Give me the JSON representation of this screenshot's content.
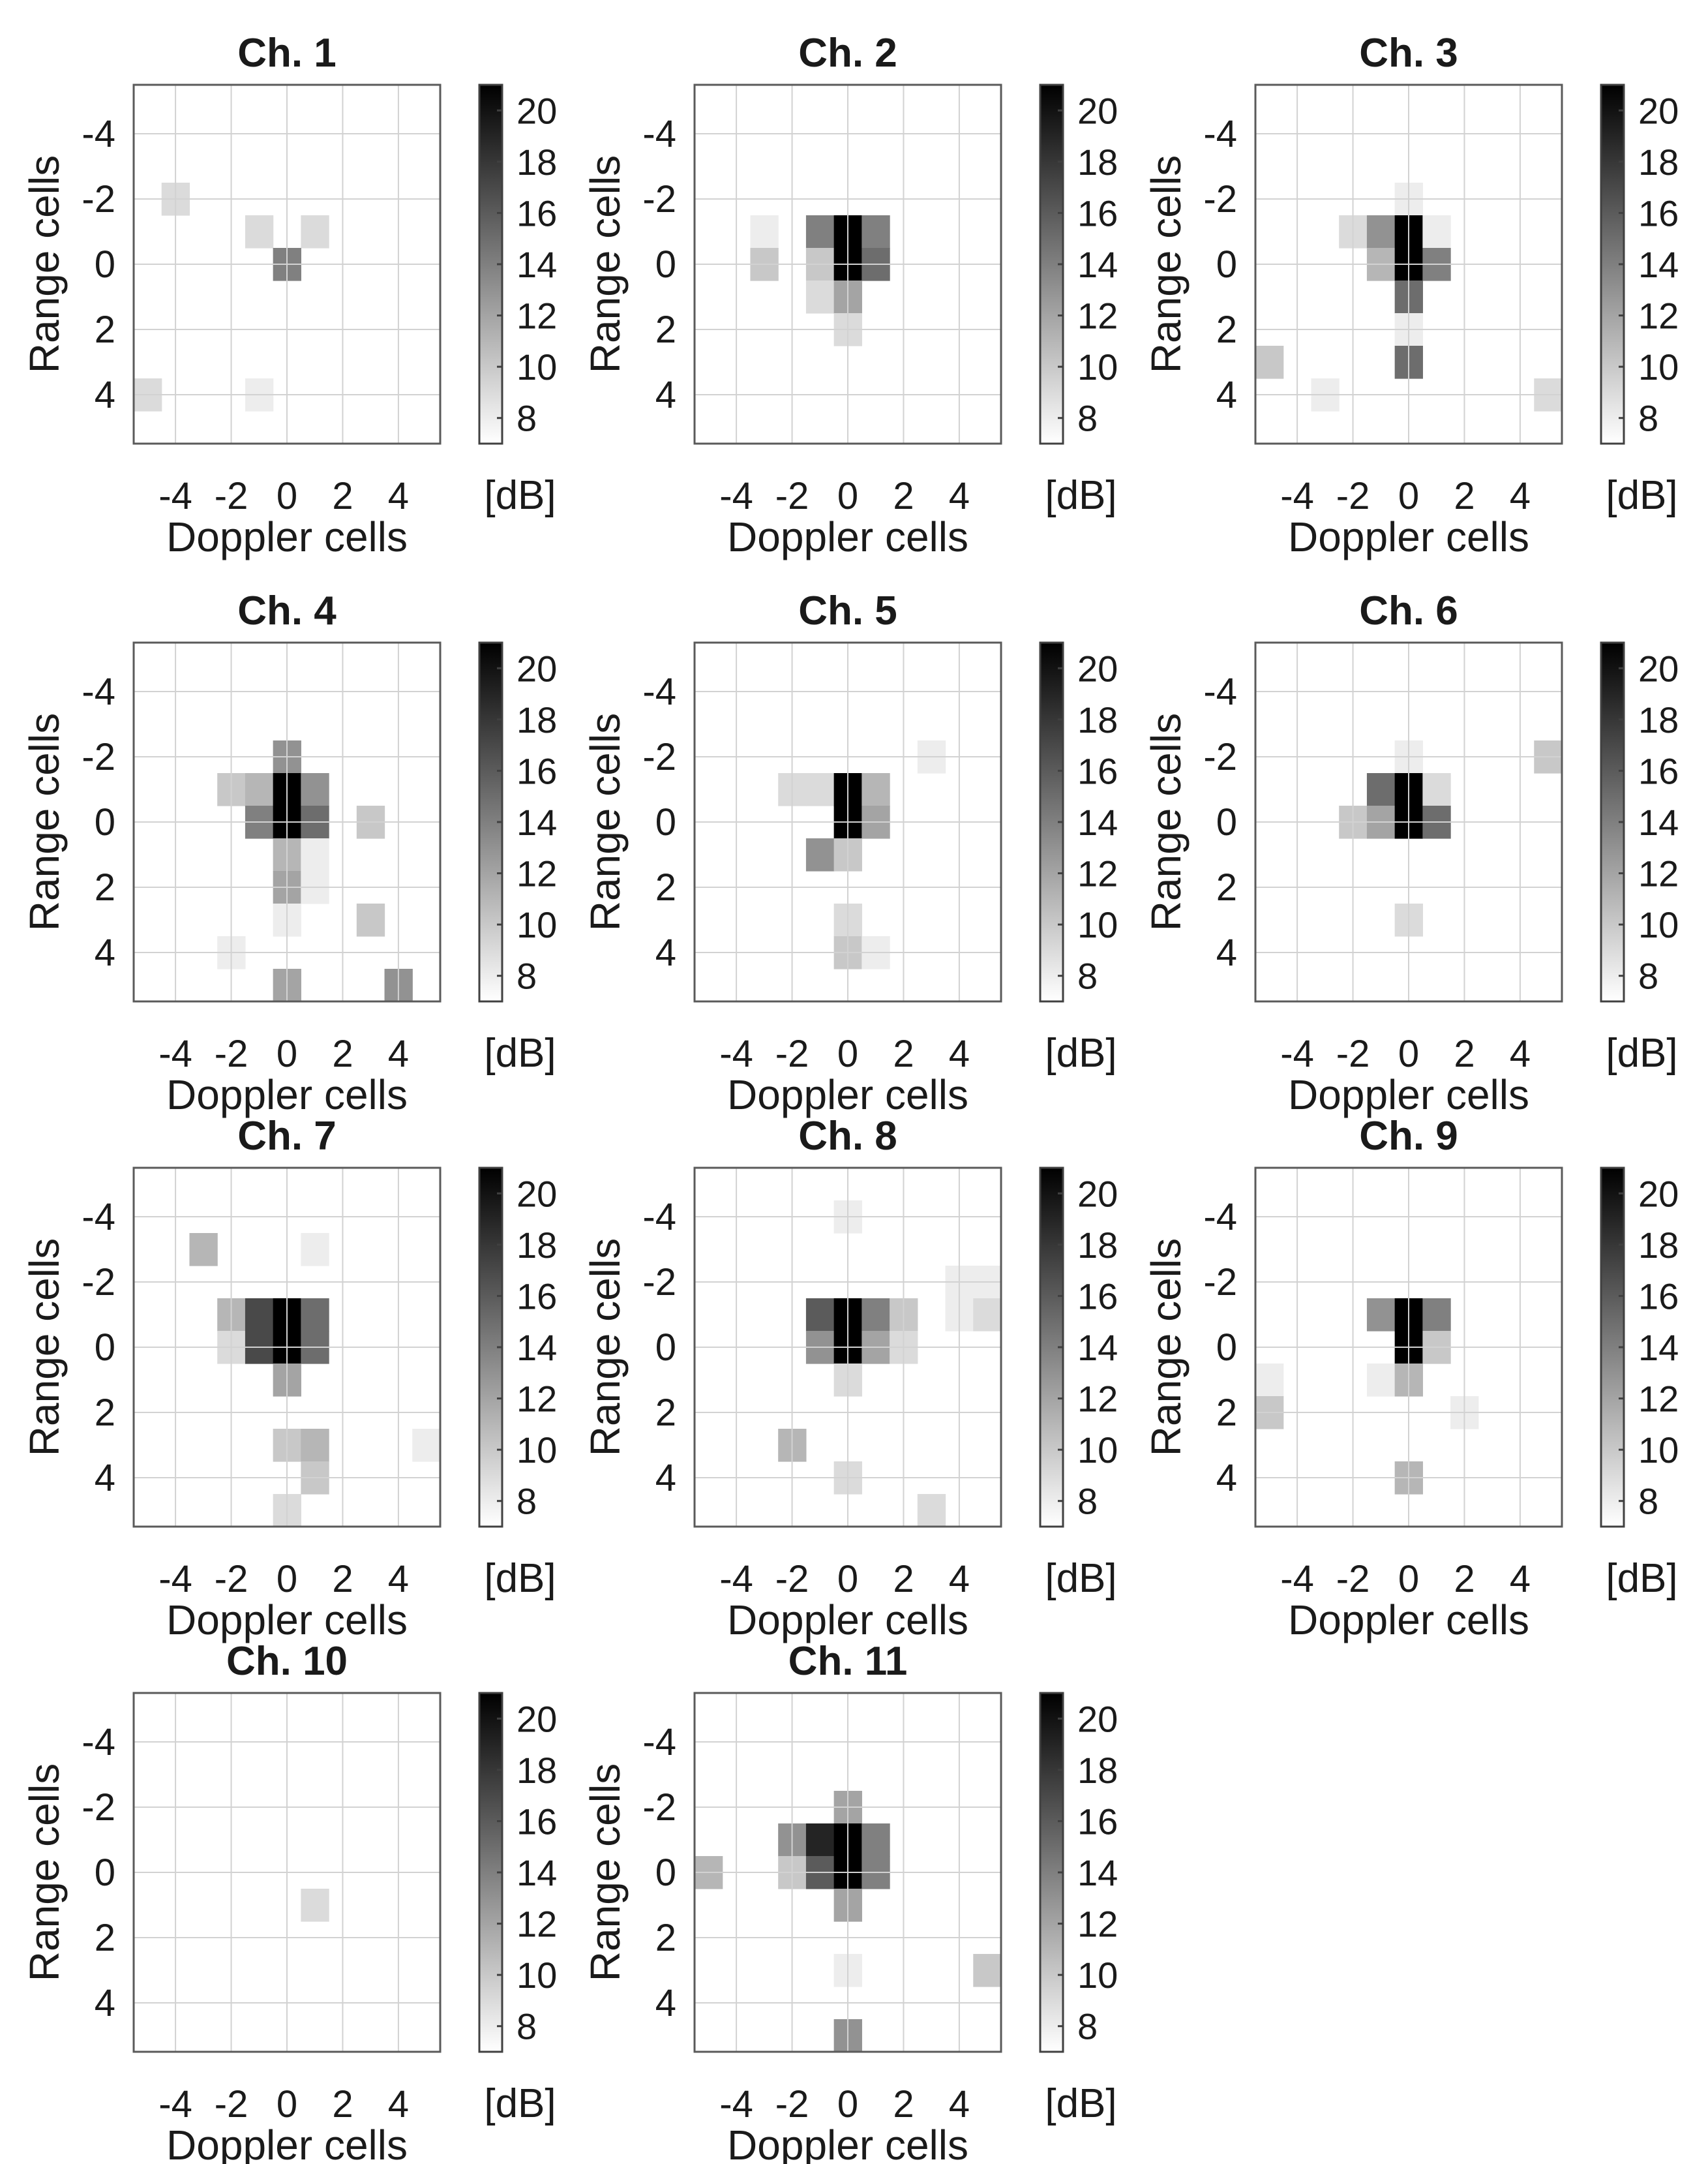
{
  "chart_data": {
    "type": "heatmap",
    "xlabel": "Doppler cells",
    "ylabel": "Range cells",
    "x_ticks": [
      "-4",
      "-2",
      "0",
      "2",
      "4"
    ],
    "y_ticks": [
      "-4",
      "-2",
      "0",
      "2",
      "4"
    ],
    "xlim": [
      -5.5,
      5.5
    ],
    "ylim": [
      -5.5,
      5.5
    ],
    "y_direction": "reversed",
    "grid": true,
    "colormap": "gray-reversed",
    "colorbar": {
      "label": "[dB]",
      "range": [
        7,
        21
      ],
      "ticks": [
        "8",
        "10",
        "12",
        "14",
        "16",
        "18",
        "20"
      ]
    },
    "panels": [
      {
        "title": "Ch. 1",
        "cells": [
          [
            -4,
            -2,
            9
          ],
          [
            -1,
            -1,
            9
          ],
          [
            1,
            -1,
            9
          ],
          [
            0,
            0,
            14
          ],
          [
            -5,
            4,
            9
          ],
          [
            -1,
            4,
            8
          ]
        ]
      },
      {
        "title": "Ch. 2",
        "cells": [
          [
            -3,
            -1,
            8
          ],
          [
            -1,
            -1,
            14
          ],
          [
            0,
            -1,
            21
          ],
          [
            1,
            -1,
            14
          ],
          [
            -3,
            0,
            10
          ],
          [
            -1,
            0,
            10
          ],
          [
            0,
            0,
            21
          ],
          [
            1,
            0,
            15
          ],
          [
            -1,
            1,
            9
          ],
          [
            0,
            1,
            12
          ],
          [
            0,
            2,
            9
          ]
        ]
      },
      {
        "title": "Ch. 3",
        "cells": [
          [
            0,
            -2,
            8
          ],
          [
            -2,
            -1,
            9
          ],
          [
            -1,
            -1,
            13
          ],
          [
            0,
            -1,
            21
          ],
          [
            1,
            -1,
            8
          ],
          [
            -1,
            0,
            11
          ],
          [
            0,
            0,
            21
          ],
          [
            1,
            0,
            14
          ],
          [
            0,
            1,
            15
          ],
          [
            0,
            2,
            8
          ],
          [
            -5,
            3,
            10
          ],
          [
            0,
            3,
            15
          ],
          [
            -3,
            4,
            8
          ],
          [
            5,
            4,
            9
          ]
        ]
      },
      {
        "title": "Ch. 4",
        "cells": [
          [
            0,
            -2,
            13
          ],
          [
            -2,
            -1,
            10
          ],
          [
            -1,
            -1,
            11
          ],
          [
            0,
            -1,
            21
          ],
          [
            1,
            -1,
            13
          ],
          [
            -1,
            0,
            14
          ],
          [
            0,
            0,
            21
          ],
          [
            1,
            0,
            15
          ],
          [
            3,
            0,
            10
          ],
          [
            0,
            1,
            11
          ],
          [
            1,
            1,
            8
          ],
          [
            0,
            2,
            12
          ],
          [
            1,
            2,
            8
          ],
          [
            0,
            3,
            8
          ],
          [
            3,
            3,
            10
          ],
          [
            -2,
            4,
            8
          ],
          [
            0,
            5,
            12
          ],
          [
            4,
            5,
            13
          ]
        ]
      },
      {
        "title": "Ch. 5",
        "cells": [
          [
            3,
            -2,
            8
          ],
          [
            -2,
            -1,
            9
          ],
          [
            -1,
            -1,
            9
          ],
          [
            0,
            -1,
            21
          ],
          [
            1,
            -1,
            11
          ],
          [
            0,
            0,
            21
          ],
          [
            1,
            0,
            12
          ],
          [
            -1,
            1,
            13
          ],
          [
            0,
            1,
            10
          ],
          [
            0,
            3,
            9
          ],
          [
            0,
            4,
            10
          ],
          [
            1,
            4,
            8
          ]
        ]
      },
      {
        "title": "Ch. 6",
        "cells": [
          [
            0,
            -2,
            8
          ],
          [
            5,
            -2,
            10
          ],
          [
            -1,
            -1,
            15
          ],
          [
            0,
            -1,
            21
          ],
          [
            1,
            -1,
            9
          ],
          [
            -2,
            0,
            10
          ],
          [
            -1,
            0,
            12
          ],
          [
            0,
            0,
            21
          ],
          [
            1,
            0,
            15
          ],
          [
            0,
            3,
            9
          ]
        ]
      },
      {
        "title": "Ch. 7",
        "cells": [
          [
            -3,
            -3,
            11
          ],
          [
            1,
            -3,
            8
          ],
          [
            -2,
            -1,
            11
          ],
          [
            -1,
            -1,
            17
          ],
          [
            0,
            -1,
            21
          ],
          [
            1,
            -1,
            15
          ],
          [
            -2,
            0,
            9
          ],
          [
            -1,
            0,
            17
          ],
          [
            0,
            0,
            21
          ],
          [
            1,
            0,
            15
          ],
          [
            0,
            1,
            12
          ],
          [
            0,
            3,
            10
          ],
          [
            1,
            3,
            11
          ],
          [
            5,
            3,
            8
          ],
          [
            1,
            4,
            10
          ],
          [
            0,
            5,
            9
          ]
        ]
      },
      {
        "title": "Ch. 8",
        "cells": [
          [
            0,
            -4,
            8
          ],
          [
            4,
            -2,
            8
          ],
          [
            5,
            -2,
            8
          ],
          [
            -1,
            -1,
            16
          ],
          [
            0,
            -1,
            21
          ],
          [
            1,
            -1,
            14
          ],
          [
            2,
            -1,
            10
          ],
          [
            4,
            -1,
            8
          ],
          [
            5,
            -1,
            9
          ],
          [
            -1,
            0,
            13
          ],
          [
            0,
            0,
            21
          ],
          [
            1,
            0,
            12
          ],
          [
            2,
            0,
            9
          ],
          [
            0,
            1,
            9
          ],
          [
            -2,
            3,
            11
          ],
          [
            0,
            4,
            9
          ],
          [
            3,
            5,
            9
          ]
        ]
      },
      {
        "title": "Ch. 9",
        "cells": [
          [
            -1,
            -1,
            13
          ],
          [
            0,
            -1,
            21
          ],
          [
            1,
            -1,
            14
          ],
          [
            0,
            0,
            21
          ],
          [
            1,
            0,
            10
          ],
          [
            -1,
            1,
            8
          ],
          [
            0,
            1,
            11
          ],
          [
            -5,
            1,
            8
          ],
          [
            -5,
            2,
            10
          ],
          [
            2,
            2,
            8
          ],
          [
            0,
            4,
            11
          ]
        ]
      },
      {
        "title": "Ch. 10",
        "cells": [
          [
            1,
            1,
            9
          ]
        ]
      },
      {
        "title": "Ch. 11",
        "cells": [
          [
            0,
            -2,
            12
          ],
          [
            -2,
            -1,
            13
          ],
          [
            -1,
            -1,
            19
          ],
          [
            0,
            -1,
            21
          ],
          [
            1,
            -1,
            14
          ],
          [
            -5,
            0,
            11
          ],
          [
            -2,
            0,
            10
          ],
          [
            -1,
            0,
            16
          ],
          [
            0,
            0,
            21
          ],
          [
            1,
            0,
            14
          ],
          [
            0,
            1,
            12
          ],
          [
            0,
            3,
            8
          ],
          [
            5,
            3,
            10
          ],
          [
            0,
            5,
            13
          ]
        ]
      }
    ]
  }
}
